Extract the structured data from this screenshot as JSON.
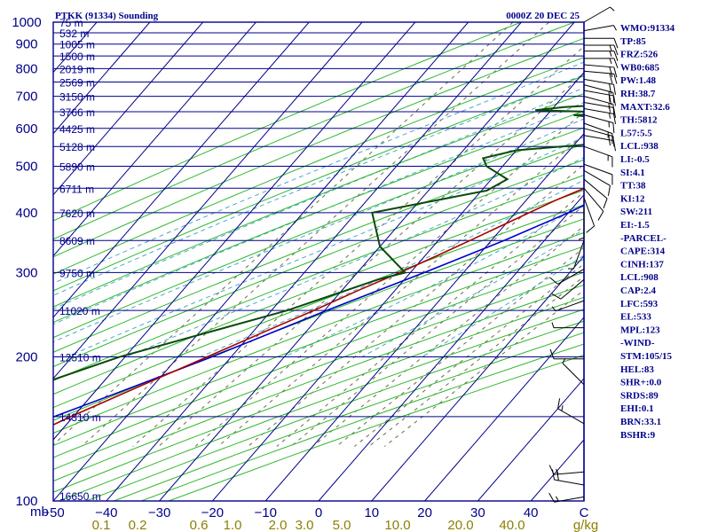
{
  "header": {
    "station": "PTKK (91334) Sounding",
    "time": "0000Z 20 DEC 25"
  },
  "colors": {
    "frame": "#00008b",
    "isobar": "#00008b",
    "isotherm": "#00008b",
    "dry_adiabat": "#2db82d",
    "moist_adiabat": "#4aa8c8",
    "mixing_ratio": "#6b6b4a",
    "temperature": "#aa0000",
    "dewpoint": "#0a4a0a",
    "parcel": "#0000cc",
    "wind_barb": "#000000"
  },
  "chart_data": {
    "type": "line",
    "title": "PTKK (91334) Sounding",
    "subtitle": "0000Z 20 DEC 25",
    "y_axis": {
      "label": "mb",
      "scale": "log",
      "range": [
        1000,
        100
      ],
      "ticks": [
        "100",
        "200",
        "300",
        "400",
        "500",
        "600",
        "700",
        "800",
        "900",
        "1000"
      ]
    },
    "x_axis": {
      "range": [
        -50,
        50
      ],
      "skew": true,
      "ticks": [
        "−50",
        "−40",
        "−30",
        "−20",
        "−10",
        "0",
        "10",
        "20",
        "30",
        "40",
        "C"
      ]
    },
    "mixing_ratio_labels": [
      "0.1",
      "0.2",
      "0.6",
      "1.0",
      "2.0",
      "3.0",
      "5.0",
      "10.0",
      "20.0",
      "40.0",
      "g/kg"
    ],
    "height_labels": [
      {
        "p": 100,
        "label": "16650 m"
      },
      {
        "p": 150,
        "label": "14310 m"
      },
      {
        "p": 200,
        "label": "12510 m"
      },
      {
        "p": 250,
        "label": "11020 m"
      },
      {
        "p": 300,
        "label": "9750 m"
      },
      {
        "p": 350,
        "label": "8609 m"
      },
      {
        "p": 400,
        "label": "7620 m"
      },
      {
        "p": 450,
        "label": "6711 m"
      },
      {
        "p": 500,
        "label": "5890 m"
      },
      {
        "p": 550,
        "label": "5128 m"
      },
      {
        "p": 600,
        "label": "4425 m"
      },
      {
        "p": 650,
        "label": "3766 m"
      },
      {
        "p": 700,
        "label": "3150 m"
      },
      {
        "p": 750,
        "label": "2569 m"
      },
      {
        "p": 800,
        "label": "2019 m"
      },
      {
        "p": 850,
        "label": "1500 m"
      },
      {
        "p": 900,
        "label": "1005 m"
      },
      {
        "p": 950,
        "label": "532 m"
      },
      {
        "p": 1000,
        "label": "75 m"
      }
    ],
    "series": [
      {
        "key": "temperature",
        "points": [
          [
            1004,
            30.4
          ],
          [
            990,
            29
          ],
          [
            970,
            27.5
          ],
          [
            950,
            26
          ],
          [
            925,
            24.4
          ],
          [
            900,
            23.6
          ],
          [
            875,
            24
          ],
          [
            850,
            24.4
          ],
          [
            825,
            25
          ],
          [
            800,
            25.6
          ],
          [
            775,
            24.8
          ],
          [
            750,
            24.2
          ],
          [
            725,
            23
          ],
          [
            700,
            21.8
          ],
          [
            675,
            20
          ],
          [
            650,
            18
          ],
          [
            625,
            15.8
          ],
          [
            600,
            13.4
          ],
          [
            575,
            11
          ],
          [
            560,
            9
          ],
          [
            550,
            8.2
          ],
          [
            525,
            5.6
          ],
          [
            500,
            3.6
          ],
          [
            475,
            1.2
          ],
          [
            450,
            -1
          ],
          [
            425,
            -4.4
          ],
          [
            400,
            -7.4
          ],
          [
            375,
            -10.6
          ],
          [
            350,
            -14
          ],
          [
            325,
            -17.8
          ],
          [
            300,
            -22
          ],
          [
            275,
            -27
          ],
          [
            250,
            -32
          ],
          [
            225,
            -38
          ],
          [
            200,
            -44.5
          ],
          [
            175,
            -52
          ],
          [
            150,
            -60.5
          ],
          [
            125,
            -69.5
          ],
          [
            115,
            -74
          ],
          [
            100,
            -79
          ]
        ]
      },
      {
        "key": "dewpoint",
        "points": [
          [
            1004,
            26
          ],
          [
            980,
            22.4
          ],
          [
            960,
            21.8
          ],
          [
            945,
            21
          ],
          [
            930,
            18.8
          ],
          [
            915,
            20
          ],
          [
            900,
            20.4
          ],
          [
            880,
            17
          ],
          [
            860,
            13.4
          ],
          [
            845,
            14.8
          ],
          [
            830,
            6
          ],
          [
            820,
            7.2
          ],
          [
            805,
            2
          ],
          [
            795,
            13.4
          ],
          [
            780,
            3.8
          ],
          [
            770,
            0
          ],
          [
            760,
            10
          ],
          [
            745,
            10.2
          ],
          [
            735,
            1
          ],
          [
            710,
            5.6
          ],
          [
            695,
            -1
          ],
          [
            680,
            -1.8
          ],
          [
            665,
            -18
          ],
          [
            655,
            -23
          ],
          [
            645,
            -3.4
          ],
          [
            640,
            -15
          ],
          [
            615,
            -1
          ],
          [
            600,
            -3
          ],
          [
            585,
            -3.6
          ],
          [
            572,
            12
          ],
          [
            560,
            -4
          ],
          [
            540,
            -20
          ],
          [
            520,
            -25
          ],
          [
            500,
            -23
          ],
          [
            470,
            -17
          ],
          [
            445,
            -19
          ],
          [
            400,
            -37
          ],
          [
            340,
            -30
          ],
          [
            300,
            -21
          ],
          [
            290,
            -25
          ],
          [
            250,
            -37
          ],
          [
            200,
            -61
          ],
          [
            150,
            -84
          ],
          [
            100,
            -85.5
          ]
        ]
      },
      {
        "key": "parcel",
        "points": [
          [
            1004,
            30.4
          ],
          [
            975,
            27.5
          ],
          [
            950,
            25.6
          ],
          [
            925,
            24
          ],
          [
            908,
            23.2
          ],
          [
            875,
            23.4
          ],
          [
            850,
            23.2
          ],
          [
            800,
            22.6
          ],
          [
            750,
            21.6
          ],
          [
            700,
            20.4
          ],
          [
            650,
            18.8
          ],
          [
            600,
            16.8
          ],
          [
            550,
            14
          ],
          [
            500,
            10.4
          ],
          [
            450,
            5.8
          ],
          [
            400,
            0
          ],
          [
            350,
            -7.6
          ],
          [
            300,
            -17.4
          ],
          [
            250,
            -29.6
          ],
          [
            200,
            -43.6
          ],
          [
            175,
            -52.8
          ],
          [
            150,
            -63.6
          ],
          [
            125,
            -76.2
          ],
          [
            105,
            -87.5
          ]
        ]
      }
    ],
    "wind_barbs": [
      {
        "p": 102,
        "dir": 260,
        "spd": 15
      },
      {
        "p": 108,
        "dir": 280,
        "spd": 20
      },
      {
        "p": 115,
        "dir": 265,
        "spd": 15
      },
      {
        "p": 145,
        "dir": 300,
        "spd": 15
      },
      {
        "p": 175,
        "dir": 315,
        "spd": 5
      },
      {
        "p": 198,
        "dir": 270,
        "spd": 10
      },
      {
        "p": 230,
        "dir": 270,
        "spd": 5
      },
      {
        "p": 262,
        "dir": 250,
        "spd": 5
      },
      {
        "p": 290,
        "dir": 230,
        "spd": 10
      },
      {
        "p": 305,
        "dir": 240,
        "spd": 10
      },
      {
        "p": 350,
        "dir": 200,
        "spd": 5
      },
      {
        "p": 410,
        "dir": 180,
        "spd": 5
      },
      {
        "p": 430,
        "dir": 160,
        "spd": 10
      },
      {
        "p": 450,
        "dir": 140,
        "spd": 10
      },
      {
        "p": 470,
        "dir": 130,
        "spd": 10
      },
      {
        "p": 490,
        "dir": 120,
        "spd": 10
      },
      {
        "p": 505,
        "dir": 110,
        "spd": 10
      },
      {
        "p": 550,
        "dir": 110,
        "spd": 15
      },
      {
        "p": 580,
        "dir": 100,
        "spd": 15
      },
      {
        "p": 600,
        "dir": 105,
        "spd": 15
      },
      {
        "p": 615,
        "dir": 110,
        "spd": 15
      },
      {
        "p": 640,
        "dir": 105,
        "spd": 15
      },
      {
        "p": 660,
        "dir": 100,
        "spd": 15
      },
      {
        "p": 680,
        "dir": 100,
        "spd": 15
      },
      {
        "p": 700,
        "dir": 105,
        "spd": 15
      },
      {
        "p": 720,
        "dir": 100,
        "spd": 20
      },
      {
        "p": 740,
        "dir": 105,
        "spd": 20
      },
      {
        "p": 760,
        "dir": 100,
        "spd": 20
      },
      {
        "p": 790,
        "dir": 95,
        "spd": 20
      },
      {
        "p": 815,
        "dir": 95,
        "spd": 20
      },
      {
        "p": 840,
        "dir": 90,
        "spd": 15
      },
      {
        "p": 870,
        "dir": 90,
        "spd": 15
      },
      {
        "p": 895,
        "dir": 90,
        "spd": 15
      },
      {
        "p": 925,
        "dir": 90,
        "spd": 10
      },
      {
        "p": 960,
        "dir": 80,
        "spd": 5
      },
      {
        "p": 1000,
        "dir": 60,
        "spd": 5
      }
    ],
    "indices": [
      "WMO:91334",
      "TP:85",
      "FRZ:526",
      "WB0:685",
      "PW:1.48",
      "RH:38.7",
      "MAXT:32.6",
      "TH:5812",
      "L57:5.5",
      "LCL:938",
      "LI:-0.5",
      "SI:4.1",
      "TT:38",
      "KI:12",
      "SW:211",
      "EI:-1.5",
      "-PARCEL-",
      "CAPE:314",
      "CINH:137",
      "LCL:908",
      "CAP:2.4",
      "LFC:593",
      "EL:533",
      "MPL:123",
      "-WIND-",
      "STM:105/15",
      "HEL:83",
      "SHR+:0.0",
      "SRDS:89",
      "EHI:0.1",
      "BRN:33.1",
      "BSHR:9"
    ]
  }
}
